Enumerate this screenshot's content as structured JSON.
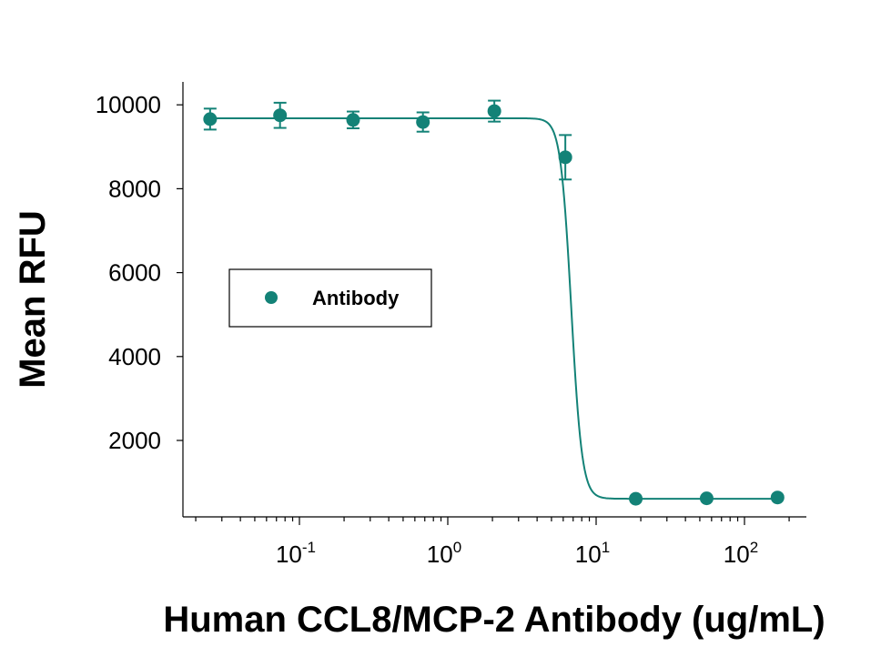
{
  "chart_data": {
    "type": "scatter",
    "xlabel": "Human CCL8/MCP-2 Antibody (ug/mL)",
    "ylabel": "Mean RFU",
    "x_scale": "log",
    "xlim": [
      0.02,
      250
    ],
    "ylim": [
      0,
      10500
    ],
    "y_ticks": [
      {
        "value": 2000,
        "label": "2000"
      },
      {
        "value": 4000,
        "label": "4000"
      },
      {
        "value": 6000,
        "label": "6000"
      },
      {
        "value": 8000,
        "label": "8000"
      },
      {
        "value": 10000,
        "label": "10000"
      }
    ],
    "x_ticks": [
      {
        "value": 0.1,
        "base": "10",
        "exp": "-1"
      },
      {
        "value": 1,
        "base": "10",
        "exp": "0"
      },
      {
        "value": 10,
        "base": "10",
        "exp": "1"
      },
      {
        "value": 100,
        "base": "10",
        "exp": "2"
      }
    ],
    "series": [
      {
        "name": "Antibody",
        "color": "#138277",
        "points": [
          {
            "x": 0.025,
            "y": 9660,
            "err": 250
          },
          {
            "x": 0.074,
            "y": 9750,
            "err": 300
          },
          {
            "x": 0.23,
            "y": 9640,
            "err": 200
          },
          {
            "x": 0.68,
            "y": 9590,
            "err": 230
          },
          {
            "x": 2.06,
            "y": 9850,
            "err": 250
          },
          {
            "x": 6.2,
            "y": 8750,
            "err": 530
          },
          {
            "x": 18.5,
            "y": 610,
            "err": 0
          },
          {
            "x": 55.6,
            "y": 620,
            "err": 0
          },
          {
            "x": 167,
            "y": 640,
            "err": 0
          }
        ],
        "fit": {
          "top": 9680,
          "bottom": 610,
          "ec50": 6.8,
          "hill": -12
        }
      }
    ],
    "legend": {
      "position": "middle-left"
    },
    "grid": false
  }
}
